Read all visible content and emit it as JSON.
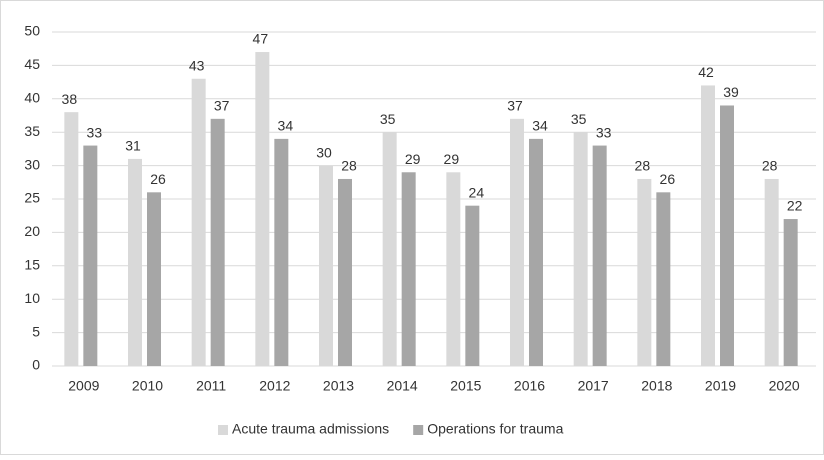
{
  "chart_data": {
    "type": "bar",
    "categories": [
      "2009",
      "2010",
      "2011",
      "2012",
      "2013",
      "2014",
      "2015",
      "2016",
      "2017",
      "2018",
      "2019",
      "2020"
    ],
    "series": [
      {
        "name": "Acute trauma admissions",
        "color": "#d9d9d9",
        "values": [
          38,
          31,
          43,
          47,
          30,
          35,
          29,
          37,
          35,
          28,
          42,
          28
        ]
      },
      {
        "name": "Operations for trauma",
        "color": "#a6a6a6",
        "values": [
          33,
          26,
          37,
          34,
          28,
          29,
          24,
          34,
          33,
          26,
          39,
          22
        ]
      }
    ],
    "ylim": [
      0,
      50
    ],
    "yticks": [
      0,
      5,
      10,
      15,
      20,
      25,
      30,
      35,
      40,
      45,
      50
    ],
    "grid": true,
    "legend": "bottom"
  }
}
